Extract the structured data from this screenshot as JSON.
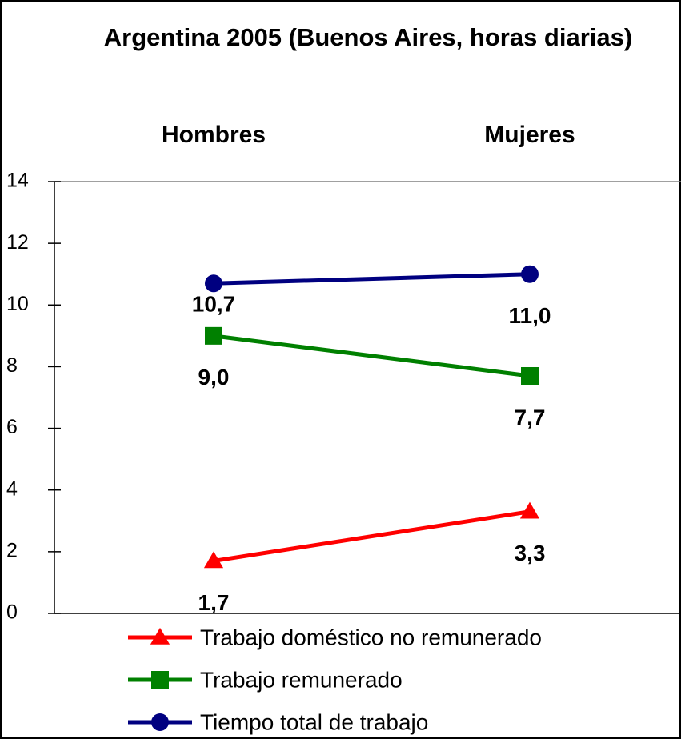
{
  "chart_data": {
    "type": "line",
    "title": "Argentina 2005 (Buenos Aires, horas diarias)",
    "categories": [
      "Hombres",
      "Mujeres"
    ],
    "series": [
      {
        "name": "Trabajo doméstico no remunerado",
        "color": "#ff0000",
        "marker": "triangle",
        "values": [
          1.7,
          3.3
        ],
        "value_labels": [
          "1,7",
          "3,3"
        ]
      },
      {
        "name": "Trabajo remunerado",
        "color": "#008000",
        "marker": "square",
        "values": [
          9.0,
          7.7
        ],
        "value_labels": [
          "9,0",
          "7,7"
        ]
      },
      {
        "name": "Tiempo total de trabajo",
        "color": "#000080",
        "marker": "circle",
        "values": [
          10.7,
          11.0
        ],
        "value_labels": [
          "10,7",
          "11,0"
        ]
      }
    ],
    "ylim": [
      0,
      14
    ],
    "yticks": [
      0,
      2,
      4,
      6,
      8,
      10,
      12,
      14
    ],
    "legend": "bottom"
  }
}
